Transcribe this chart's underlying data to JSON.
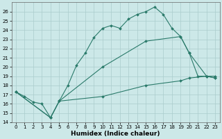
{
  "xlabel": "Humidex (Indice chaleur)",
  "bg_color": "#cce8e8",
  "grid_color": "#aacccc",
  "line_color": "#2a7a6a",
  "xlim": [
    -0.5,
    23.5
  ],
  "ylim": [
    14,
    27
  ],
  "yticks": [
    14,
    15,
    16,
    17,
    18,
    19,
    20,
    21,
    22,
    23,
    24,
    25,
    26
  ],
  "xticks": [
    0,
    1,
    2,
    3,
    4,
    5,
    6,
    7,
    8,
    9,
    10,
    11,
    12,
    13,
    14,
    15,
    16,
    17,
    18,
    19,
    20,
    21,
    22,
    23
  ],
  "line1_x": [
    0,
    1,
    2,
    3,
    4,
    5,
    6,
    7,
    8,
    9,
    10,
    11,
    12,
    13,
    14,
    15,
    16,
    17,
    18,
    19,
    20,
    21,
    22,
    23
  ],
  "line1_y": [
    17.3,
    16.8,
    16.2,
    16.0,
    14.5,
    16.3,
    18.0,
    20.2,
    21.5,
    23.2,
    24.2,
    24.5,
    24.2,
    25.2,
    25.7,
    26.0,
    26.5,
    25.7,
    24.2,
    23.3,
    21.5,
    19.0,
    19.0,
    18.8
  ],
  "line2_x": [
    0,
    4,
    5,
    10,
    15,
    19,
    20,
    22,
    23
  ],
  "line2_y": [
    17.3,
    14.5,
    16.3,
    20.0,
    22.8,
    23.3,
    21.5,
    19.0,
    18.8
  ],
  "line3_x": [
    0,
    4,
    5,
    10,
    15,
    19,
    20,
    22,
    23
  ],
  "line3_y": [
    17.3,
    14.5,
    16.3,
    16.8,
    18.0,
    18.5,
    18.8,
    19.0,
    19.0
  ]
}
